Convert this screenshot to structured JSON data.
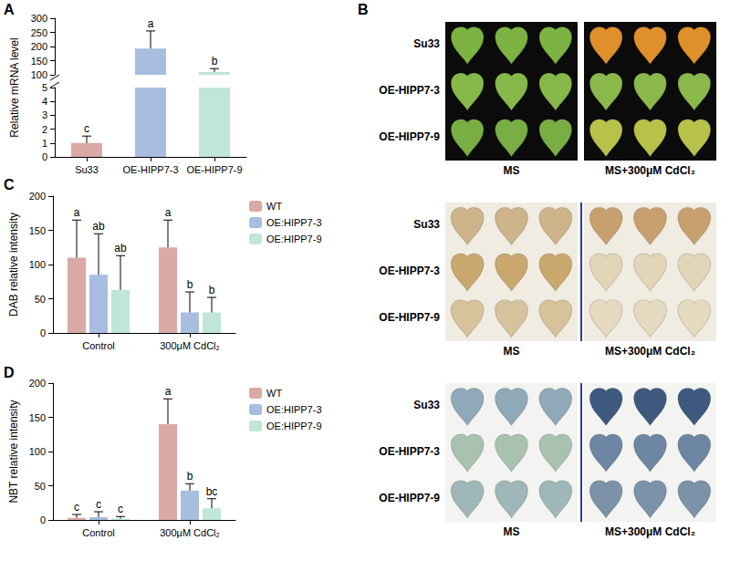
{
  "chart_data": [
    {
      "panel": "A",
      "type": "bar",
      "categories": [
        "Su33",
        "OE-HIPP7-3",
        "OE-HIPP7-9"
      ],
      "values": [
        1,
        193,
        110
      ],
      "errors": [
        0.5,
        62,
        12
      ],
      "letters": [
        "c",
        "a",
        "b"
      ],
      "colors": [
        "#d9a9a5",
        "#a8bde0",
        "#bfe6d6"
      ],
      "y_label": "Relative mRNA level",
      "ylim": [
        0,
        300
      ],
      "y_break": [
        5,
        100
      ],
      "yticks": [
        0,
        1,
        2,
        3,
        4,
        5,
        100,
        150,
        200,
        250,
        300
      ],
      "grid": false
    },
    {
      "panel": "C",
      "type": "bar",
      "categories": [
        "Control",
        "300μM CdCl₂"
      ],
      "series": [
        {
          "name": "WT",
          "color": "#d9a9a5",
          "values": [
            110,
            125
          ],
          "errors": [
            55,
            40
          ],
          "letters": [
            "a",
            "a"
          ]
        },
        {
          "name": "OE:HIPP7-3",
          "color": "#a8bde0",
          "values": [
            85,
            30
          ],
          "errors": [
            60,
            30
          ],
          "letters": [
            "ab",
            "b"
          ]
        },
        {
          "name": "OE:HIPP7-9",
          "color": "#bfe6d6",
          "values": [
            63,
            30
          ],
          "errors": [
            50,
            22
          ],
          "letters": [
            "ab",
            "b"
          ]
        }
      ],
      "y_label": "DAB relative intensity",
      "ylim": [
        0,
        200
      ],
      "yticks": [
        0,
        50,
        100,
        150,
        200
      ],
      "legend": "right",
      "grid": false
    },
    {
      "panel": "D",
      "type": "bar",
      "categories": [
        "Control",
        "300μM CdCl₂"
      ],
      "series": [
        {
          "name": "WT",
          "color": "#d9a9a5",
          "values": [
            3,
            140
          ],
          "errors": [
            5,
            37
          ],
          "letters": [
            "c",
            "a"
          ]
        },
        {
          "name": "OE:HIPP7-3",
          "color": "#a8bde0",
          "values": [
            4,
            43
          ],
          "errors": [
            8,
            10
          ],
          "letters": [
            "c",
            "b"
          ]
        },
        {
          "name": "OE:HIPP7-9",
          "color": "#bfe6d6",
          "values": [
            2,
            17
          ],
          "errors": [
            3,
            14
          ],
          "letters": [
            "c",
            "bc"
          ]
        }
      ],
      "y_label": "NBT relative intensity",
      "ylim": [
        0,
        200
      ],
      "yticks": [
        0,
        50,
        100,
        150,
        200
      ],
      "legend": "right",
      "grid": false
    }
  ],
  "photo_panel": {
    "panel": "B",
    "blocks": [
      {
        "rows": [
          "Su33",
          "OE-HIPP7-3",
          "OE-HIPP7-9"
        ],
        "columns": [
          "MS",
          "MS+300μM CdCl₂"
        ]
      },
      {
        "rows": [
          "Su33",
          "OE-HIPP7-3",
          "OE-HIPP7-9"
        ],
        "columns": [
          "MS",
          "MS+300μM CdCl₂"
        ]
      },
      {
        "rows": [
          "Su33",
          "OE-HIPP7-3",
          "OE-HIPP7-9"
        ],
        "columns": [
          "MS",
          "MS+300μM CdCl₂"
        ]
      }
    ]
  }
}
